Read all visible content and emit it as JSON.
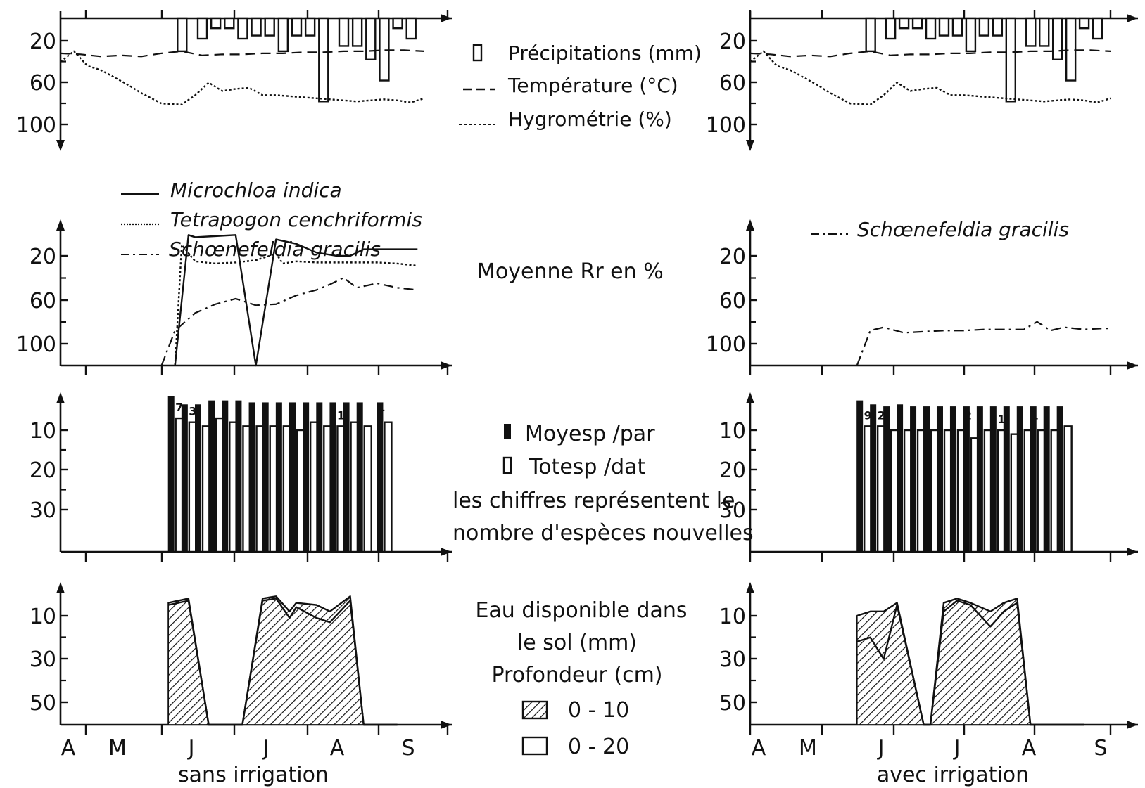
{
  "months": [
    "A",
    "M",
    "J",
    "J",
    "A",
    "S"
  ],
  "panel_titles": {
    "left": "sans irrigation",
    "right": "avec irrigation"
  },
  "legends": {
    "climate": [
      {
        "symbol": "bar",
        "label": "Précipitations (mm)"
      },
      {
        "symbol": "dashed",
        "label": "Température (°C)"
      },
      {
        "symbol": "dotted",
        "label": "Hygrométrie (%)"
      }
    ],
    "species_left": [
      {
        "style": "solid",
        "label": "Microchloa indica"
      },
      {
        "style": "dotted",
        "label": "Tetrapogon cenchriformis"
      },
      {
        "style": "dashdot",
        "label": "Schœnefeldia gracilis"
      }
    ],
    "species_right": [
      {
        "style": "dashdot",
        "label": "Schœnefeldia gracilis"
      }
    ],
    "rr_label": "Moyenne Rr en %",
    "richness": [
      {
        "symbol": "filled",
        "label": "Moyesp /par"
      },
      {
        "symbol": "open",
        "label": "Totesp /dat"
      }
    ],
    "richness_note": [
      "les chiffres représentent le",
      "nombre d'espèces nouvelles"
    ],
    "soil": [
      "Eau disponible dans",
      "le sol (mm)",
      "Profondeur (cm)"
    ],
    "soil_depths": [
      {
        "symbol": "hatched",
        "label": "0 - 10"
      },
      {
        "symbol": "open",
        "label": "0 - 20"
      }
    ]
  },
  "chart_data": [
    {
      "id": "climate-left",
      "type": "bar+line",
      "y_inverted": true,
      "yticks": [
        "20",
        "60",
        "100"
      ],
      "ylim": [
        0,
        110
      ],
      "series": [
        {
          "name": "Précipitations (mm)",
          "kind": "bar",
          "x": [
            18,
            21,
            23,
            25,
            27,
            29,
            31,
            33,
            35,
            37,
            39,
            42,
            44,
            46,
            48,
            50,
            52
          ],
          "values": [
            30,
            18,
            8,
            8,
            18,
            15,
            15,
            30,
            15,
            15,
            78,
            25,
            25,
            38,
            58,
            8,
            18
          ]
        },
        {
          "name": "Température (°C)",
          "kind": "dashed",
          "x": [
            0,
            3,
            6,
            9,
            12,
            15,
            18,
            21,
            24,
            27,
            30,
            33,
            36,
            39,
            42,
            45,
            48,
            51,
            54
          ],
          "values": [
            32,
            33,
            35,
            34,
            35,
            32,
            30,
            34,
            33,
            33,
            32,
            32,
            31,
            31,
            30,
            30,
            29,
            29,
            30
          ]
        },
        {
          "name": "Hygrométrie (%)",
          "kind": "dotted",
          "x": [
            0,
            2,
            4,
            6,
            8,
            10,
            12,
            15,
            18,
            20,
            22,
            24,
            26,
            28,
            30,
            32,
            34,
            36,
            38,
            40,
            42,
            44,
            46,
            48,
            50,
            52,
            54
          ],
          "values": [
            40,
            30,
            44,
            48,
            55,
            62,
            70,
            80,
            81,
            72,
            60,
            68,
            66,
            65,
            72,
            72,
            73,
            74,
            75,
            76,
            77,
            78,
            77,
            76,
            77,
            79,
            75
          ]
        }
      ]
    },
    {
      "id": "climate-right",
      "type": "bar+line",
      "y_inverted": true,
      "yticks": [
        "20",
        "60",
        "100"
      ],
      "ylim": [
        0,
        110
      ],
      "series": [
        {
          "name": "Précipitations (mm)",
          "kind": "bar",
          "x": [
            18,
            21,
            23,
            25,
            27,
            29,
            31,
            33,
            35,
            37,
            39,
            42,
            44,
            46,
            48,
            50,
            52
          ],
          "values": [
            30,
            18,
            8,
            8,
            18,
            15,
            15,
            30,
            15,
            15,
            78,
            25,
            25,
            38,
            58,
            8,
            18
          ]
        },
        {
          "name": "Température (°C)",
          "kind": "dashed",
          "x": [
            0,
            3,
            6,
            9,
            12,
            15,
            18,
            21,
            24,
            27,
            30,
            33,
            36,
            39,
            42,
            45,
            48,
            51,
            54
          ],
          "values": [
            32,
            33,
            35,
            34,
            35,
            32,
            30,
            34,
            33,
            33,
            32,
            32,
            31,
            31,
            30,
            30,
            29,
            29,
            30
          ]
        },
        {
          "name": "Hygrométrie (%)",
          "kind": "dotted",
          "x": [
            0,
            2,
            4,
            6,
            8,
            10,
            12,
            15,
            18,
            20,
            22,
            24,
            26,
            28,
            30,
            32,
            34,
            36,
            38,
            40,
            42,
            44,
            46,
            48,
            50,
            52,
            54
          ],
          "values": [
            40,
            30,
            44,
            48,
            55,
            62,
            70,
            80,
            81,
            72,
            60,
            68,
            66,
            65,
            72,
            72,
            73,
            74,
            75,
            76,
            77,
            78,
            77,
            76,
            77,
            79,
            75
          ]
        }
      ]
    },
    {
      "id": "rr-left",
      "type": "line",
      "yticks": [
        "20",
        "60",
        "100"
      ],
      "ylim": [
        0,
        110
      ],
      "series": [
        {
          "name": "Schœnefeldia gracilis",
          "kind": "dashdot",
          "x": [
            15,
            17,
            20,
            23,
            26,
            29,
            32,
            35,
            38,
            40,
            42,
            44,
            47,
            50,
            53
          ],
          "values": [
            0,
            88,
            72,
            64,
            59,
            65,
            64,
            56,
            51,
            46,
            40,
            49,
            45,
            49,
            51
          ]
        },
        {
          "name": "Tetrapogon cenchriformis",
          "kind": "dotted",
          "x": [
            17,
            18,
            20,
            23,
            26,
            29,
            32,
            33,
            35,
            38,
            41,
            44,
            47,
            50,
            53
          ],
          "values": [
            0,
            10,
            25,
            27,
            26,
            24,
            18,
            27,
            25,
            26,
            26,
            26,
            26,
            27,
            29
          ]
        },
        {
          "name": "Microchloa indica",
          "kind": "solid",
          "x": [
            17,
            19,
            20,
            23,
            26,
            29,
            32,
            35,
            38,
            41,
            43,
            45,
            49,
            53
          ],
          "values": [
            0,
            1,
            3,
            2,
            1,
            0,
            5,
            9,
            17,
            20,
            20,
            14,
            14,
            14
          ]
        }
      ]
    },
    {
      "id": "rr-right",
      "type": "line",
      "yticks": [
        "20",
        "60",
        "100"
      ],
      "ylim": [
        0,
        110
      ],
      "series": [
        {
          "name": "Schœnefeldia gracilis",
          "kind": "dashdot",
          "x": [
            16,
            18,
            20,
            23,
            26,
            29,
            32,
            35,
            38,
            41,
            43,
            45,
            47,
            50,
            53,
            54
          ],
          "values": [
            0,
            88,
            85,
            90,
            89,
            88,
            88,
            87,
            87,
            87,
            80,
            88,
            85,
            87,
            86,
            86
          ]
        }
      ]
    },
    {
      "id": "richness-left",
      "type": "bar",
      "yticks": [
        "10",
        "20",
        "30"
      ],
      "ylim": [
        0,
        33
      ],
      "x": [
        17,
        19,
        21,
        23,
        25,
        27,
        29,
        31,
        33,
        35,
        37,
        39,
        41,
        43,
        45,
        48
      ],
      "series": [
        {
          "name": "Totesp /dat",
          "values": [
            7,
            8,
            9,
            7,
            8,
            9,
            9,
            9,
            9,
            10,
            8,
            9,
            9,
            8,
            9,
            8
          ]
        },
        {
          "name": "Moyesp /par",
          "values": [
            1.5,
            3.5,
            3.5,
            2.5,
            2.5,
            2.5,
            3,
            3,
            3,
            3,
            3,
            3,
            3,
            3,
            3,
            3
          ]
        }
      ],
      "annotations": [
        {
          "x": 17,
          "text": "7"
        },
        {
          "x": 19,
          "text": "3"
        },
        {
          "x": 41,
          "text": "1"
        },
        {
          "x": 47,
          "text": "1"
        }
      ]
    },
    {
      "id": "richness-right",
      "type": "bar",
      "yticks": [
        "10",
        "20",
        "30"
      ],
      "ylim": [
        0,
        33
      ],
      "x": [
        17,
        19,
        21,
        23,
        25,
        27,
        29,
        31,
        33,
        35,
        37,
        39,
        41,
        43,
        45,
        47
      ],
      "series": [
        {
          "name": "Totesp /dat",
          "values": [
            9,
            9,
            10,
            10,
            10,
            10,
            10,
            10,
            12,
            10,
            10,
            11,
            10,
            10,
            10,
            9
          ]
        },
        {
          "name": "Moyesp /par",
          "values": [
            2.5,
            3.5,
            4,
            3.5,
            4,
            4,
            4,
            4,
            4,
            4,
            4,
            4,
            4,
            4,
            4,
            4
          ]
        }
      ],
      "annotations": [
        {
          "x": 17,
          "text": "9"
        },
        {
          "x": 19,
          "text": "2"
        },
        {
          "x": 32,
          "text": "2"
        },
        {
          "x": 37,
          "text": "1"
        },
        {
          "x": 42,
          "text": "1"
        }
      ]
    },
    {
      "id": "soil-left",
      "type": "area",
      "yticks": [
        "10",
        "30",
        "50"
      ],
      "ylim": [
        0,
        58
      ],
      "series": [
        {
          "name": "0 - 20",
          "x": [
            16,
            19,
            22,
            26,
            27,
            30,
            32,
            34,
            35,
            38,
            40,
            43,
            45,
            47,
            50
          ],
          "values": [
            5,
            3,
            0,
            0,
            0,
            3,
            2,
            11,
            6,
            11,
            13,
            3,
            0,
            0,
            0
          ]
        },
        {
          "name": "0 - 10",
          "x": [
            16,
            19,
            22,
            26,
            27,
            30,
            32,
            34,
            35,
            38,
            40,
            43,
            45,
            47,
            50
          ],
          "values": [
            4,
            2,
            0,
            0,
            0,
            2,
            1,
            8,
            4,
            5,
            8,
            1,
            0,
            0,
            0
          ]
        }
      ]
    },
    {
      "id": "soil-right",
      "type": "area",
      "yticks": [
        "10",
        "30",
        "50"
      ],
      "ylim": [
        0,
        58
      ],
      "series": [
        {
          "name": "0 - 20",
          "x": [
            16,
            18,
            20,
            22,
            26,
            27,
            29,
            31,
            33,
            36,
            38,
            40,
            42,
            45,
            47,
            50
          ],
          "values": [
            22,
            20,
            30,
            5,
            0,
            0,
            8,
            3,
            5,
            15,
            8,
            4,
            0,
            0,
            0,
            0
          ]
        },
        {
          "name": "0 - 10",
          "x": [
            16,
            18,
            20,
            22,
            26,
            27,
            29,
            31,
            33,
            36,
            38,
            40,
            42,
            45,
            47,
            50
          ],
          "values": [
            10,
            8,
            8,
            4,
            0,
            0,
            4,
            2,
            4,
            8,
            4,
            2,
            0,
            0,
            0,
            0
          ]
        }
      ]
    }
  ]
}
